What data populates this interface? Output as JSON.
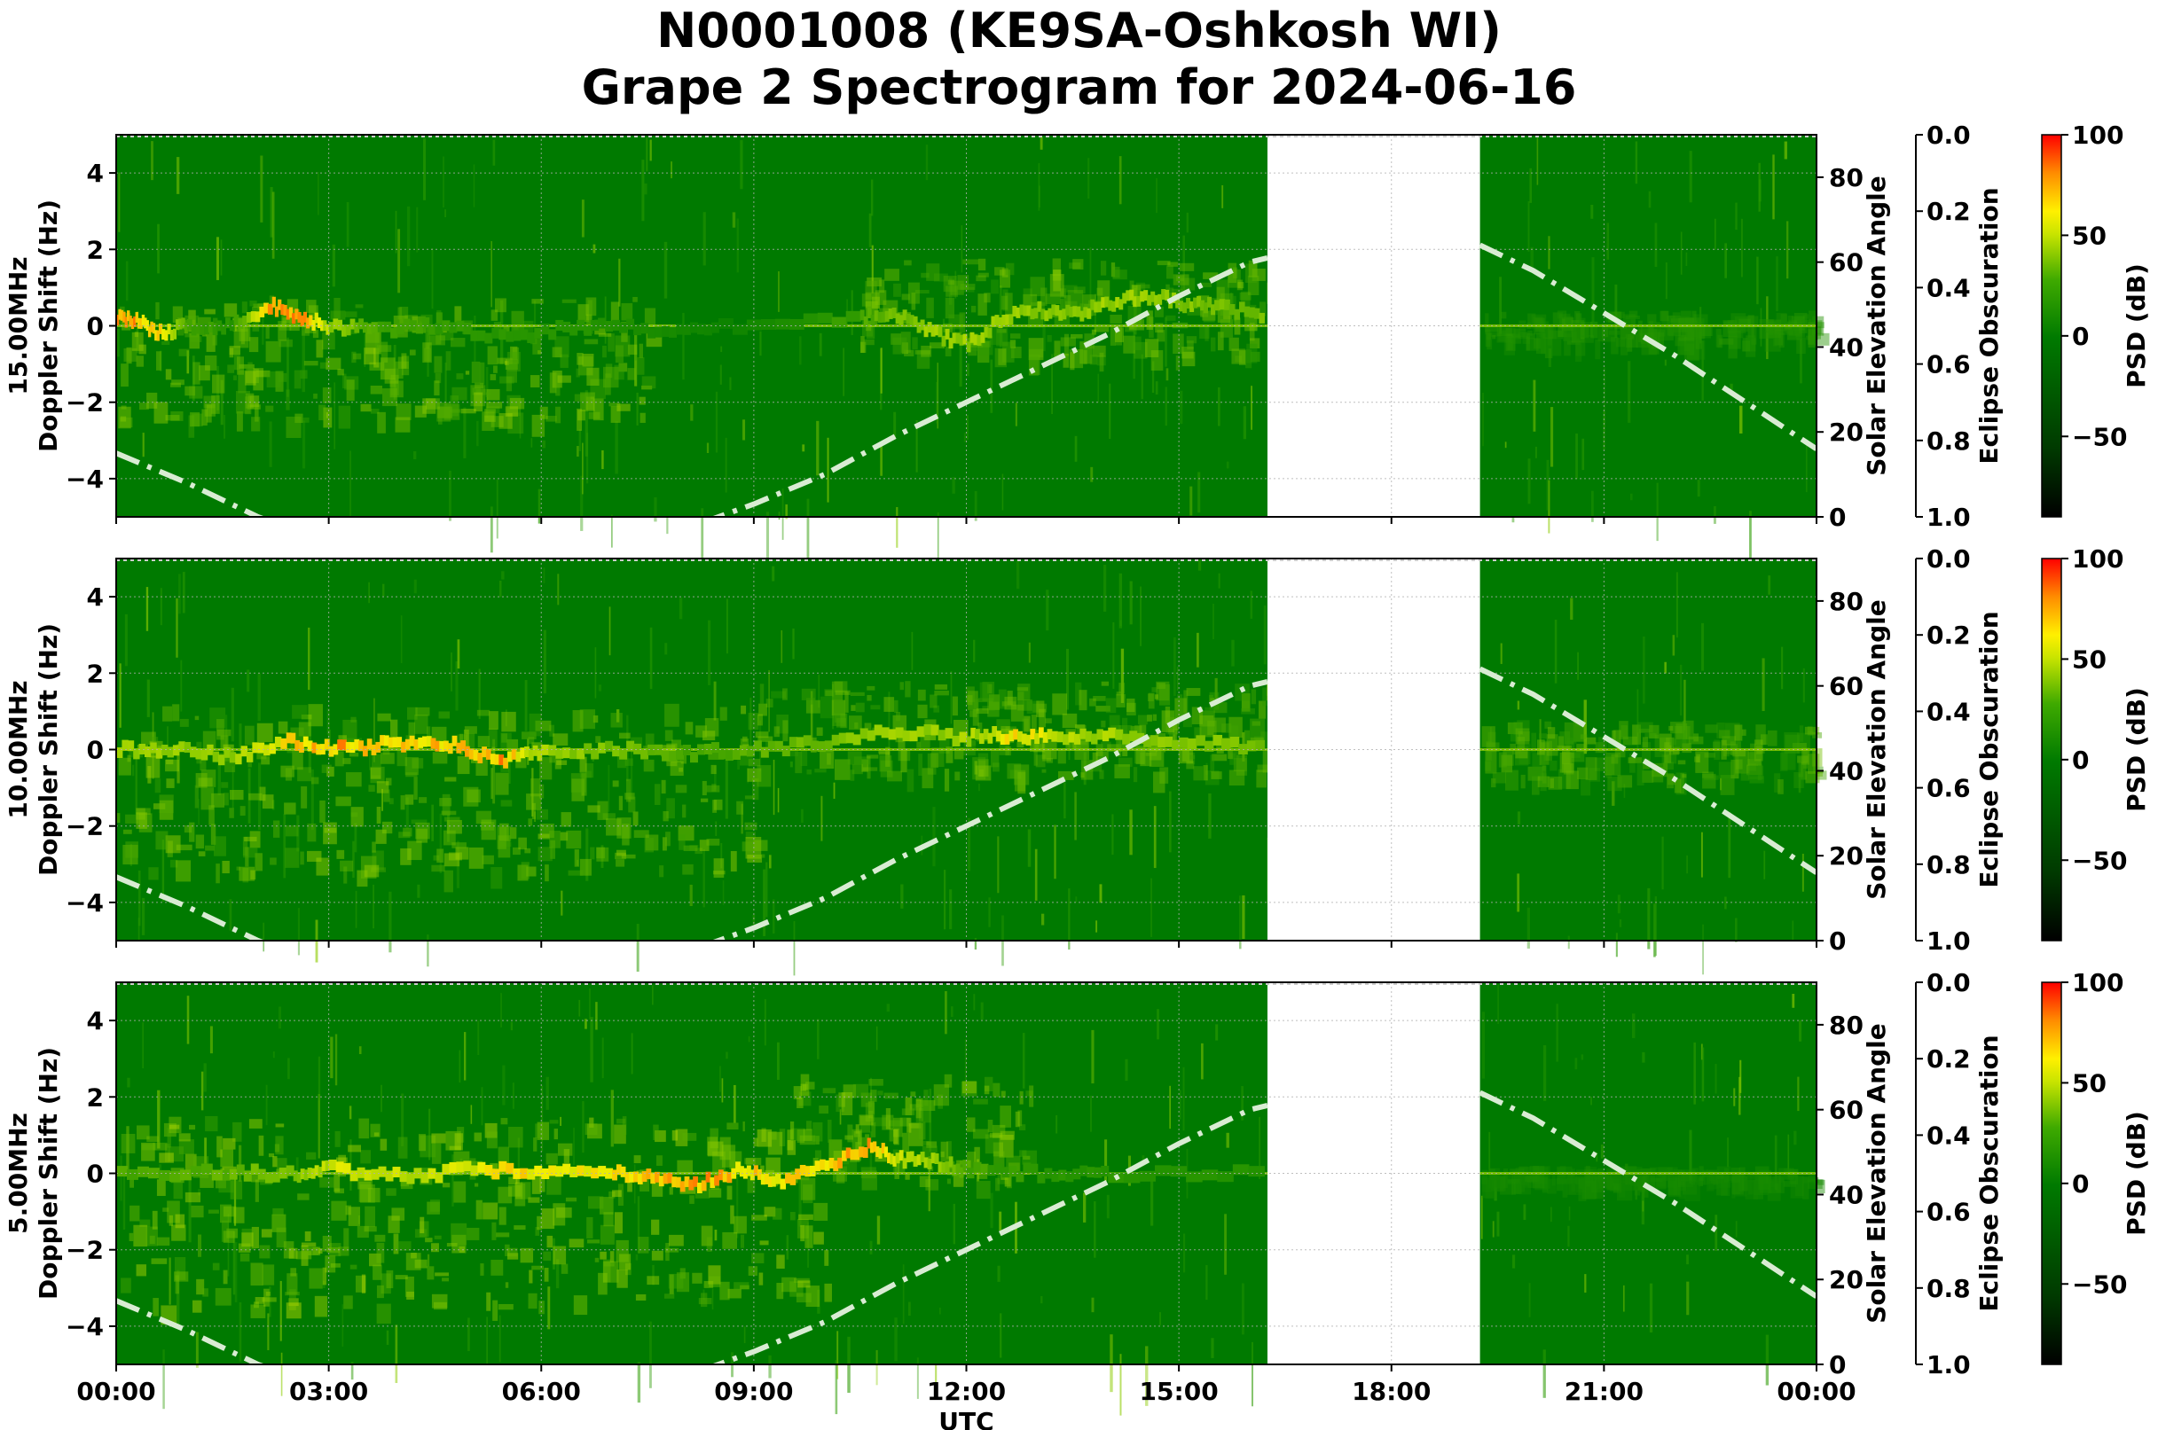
{
  "title": {
    "line1": "N0001008 (KE9SA-Oshkosh WI)",
    "line2": "Grape 2 Spectrogram for 2024-06-16"
  },
  "colors": {
    "background_green": "#007a00",
    "noise_low": "#2a9a00",
    "noise_mid": "#8ccc00",
    "signal_yellow": "#f2f000",
    "signal_red": "#ff2a00",
    "data_gap": "#ffffff",
    "solar_curve": "#d9ecd3",
    "grid": "#b0b0b0"
  },
  "chart_data": [
    {
      "type": "heatmap",
      "panel": "15.00MHz",
      "ylabel": "15.00MHz\nDoppler Shift (Hz)",
      "xlabel": "",
      "ylim": [
        -5,
        5
      ],
      "xlim_hours": [
        0,
        24
      ],
      "y_ticks": [
        "4",
        "2",
        "0",
        "−2",
        "−4"
      ],
      "y_tick_values": [
        4,
        2,
        0,
        -2,
        -4
      ],
      "x_ticks": [
        "00:00",
        "03:00",
        "06:00",
        "09:00",
        "12:00",
        "15:00",
        "18:00",
        "21:00",
        "00:00"
      ],
      "x_tick_values": [
        0,
        3,
        6,
        9,
        12,
        15,
        18,
        21,
        24
      ],
      "data_gap_hours": [
        16.25,
        19.25
      ],
      "carrier_doppler_hz": 0,
      "signal_trace": {
        "hours": [
          0,
          0.3,
          0.6,
          1.0,
          1.6,
          2.2,
          2.6,
          3.0,
          3.6,
          4.5,
          5.5,
          6.5,
          7.5,
          8.5,
          10.5,
          11.0,
          11.5,
          12.0,
          12.5,
          13.0,
          13.5,
          14.0,
          14.5,
          15.0,
          15.5,
          16.2
        ],
        "doppler": [
          0.2,
          0.1,
          -0.2,
          0.0,
          0.0,
          0.5,
          0.2,
          0.0,
          -0.1,
          0.0,
          -0.3,
          0.0,
          -0.1,
          0.0,
          0.2,
          0.3,
          -0.2,
          -0.5,
          0.2,
          0.4,
          0.3,
          0.6,
          0.8,
          0.6,
          0.5,
          0.3
        ],
        "intensity": [
          0.9,
          0.9,
          0.8,
          0.4,
          0.3,
          0.95,
          0.95,
          0.6,
          0.4,
          0.35,
          0.3,
          0.3,
          0.2,
          0.1,
          0.4,
          0.5,
          0.6,
          0.6,
          0.6,
          0.55,
          0.55,
          0.6,
          0.6,
          0.55,
          0.5,
          0.5
        ]
      },
      "spread_regions": [
        {
          "start_h": 0.0,
          "end_h": 7.5,
          "center_hz": -0.8,
          "spread_hz": 1.6,
          "strength": 0.55
        },
        {
          "start_h": 10.5,
          "end_h": 16.25,
          "center_hz": 0.5,
          "spread_hz": 1.3,
          "strength": 0.5
        },
        {
          "start_h": 19.25,
          "end_h": 24.0,
          "center_hz": 0.0,
          "spread_hz": 0.4,
          "strength": 0.3
        }
      ],
      "right_axis": {
        "label": "Solar Elevation Angle",
        "ylim": [
          0,
          90
        ],
        "ticks": [
          "0",
          "20",
          "40",
          "60",
          "80"
        ],
        "tick_values": [
          0,
          20,
          40,
          60,
          80
        ]
      },
      "eclipse_axis": {
        "label": "Eclipse Obscuration",
        "ylim": [
          1.0,
          0.0
        ],
        "ticks": [
          "0.0",
          "0.2",
          "0.4",
          "0.6",
          "0.8",
          "1.0"
        ],
        "tick_values": [
          0.0,
          0.2,
          0.4,
          0.6,
          0.8,
          1.0
        ]
      },
      "colorbar": {
        "label": "PSD (dB)",
        "range": [
          -90,
          100
        ],
        "ticks": [
          "100",
          "50",
          "0",
          "−50"
        ],
        "tick_values": [
          100,
          50,
          0,
          -50
        ]
      },
      "solar_elevation": {
        "hours": [
          0,
          1,
          2,
          3,
          4,
          5,
          6,
          7,
          8,
          9,
          10,
          11,
          12,
          13,
          14,
          15,
          16,
          16.25,
          19.25,
          20,
          21,
          22,
          23,
          24
        ],
        "degrees": [
          15,
          8,
          0,
          -6,
          -10,
          -12,
          -11,
          -8,
          -3,
          3,
          10,
          19,
          27,
          35,
          43,
          52,
          60,
          61,
          64,
          58,
          48,
          38,
          27,
          16
        ]
      }
    },
    {
      "type": "heatmap",
      "panel": "10.00MHz",
      "ylabel": "10.00MHz\nDoppler Shift (Hz)",
      "xlabel": "",
      "ylim": [
        -5,
        5
      ],
      "xlim_hours": [
        0,
        24
      ],
      "y_ticks": [
        "4",
        "2",
        "0",
        "−2",
        "−4"
      ],
      "y_tick_values": [
        4,
        2,
        0,
        -2,
        -4
      ],
      "x_ticks": [
        "00:00",
        "03:00",
        "06:00",
        "09:00",
        "12:00",
        "15:00",
        "18:00",
        "21:00",
        "00:00"
      ],
      "x_tick_values": [
        0,
        3,
        6,
        9,
        12,
        15,
        18,
        21,
        24
      ],
      "data_gap_hours": [
        16.25,
        19.25
      ],
      "carrier_doppler_hz": 0,
      "signal_trace": {
        "hours": [
          0,
          0.8,
          1.6,
          2.4,
          3.0,
          3.6,
          4.2,
          4.8,
          5.4,
          6.0,
          7.0,
          8.0,
          9.0,
          10.0,
          11.0,
          12.0,
          12.6,
          13.2,
          14.0,
          15.0,
          16.2
        ],
        "doppler": [
          0.0,
          0.0,
          -0.2,
          0.2,
          0.0,
          0.1,
          0.2,
          0.1,
          -0.3,
          -0.1,
          0.0,
          -0.1,
          0.0,
          0.2,
          0.5,
          0.3,
          0.4,
          0.3,
          0.4,
          0.2,
          0.1
        ],
        "intensity": [
          0.6,
          0.6,
          0.6,
          0.8,
          0.9,
          0.85,
          0.8,
          0.9,
          0.9,
          0.6,
          0.5,
          0.4,
          0.45,
          0.5,
          0.6,
          0.6,
          0.8,
          0.7,
          0.6,
          0.55,
          0.5
        ]
      },
      "spread_regions": [
        {
          "start_h": 0.0,
          "end_h": 9.0,
          "center_hz": -1.0,
          "spread_hz": 2.2,
          "strength": 0.55
        },
        {
          "start_h": 9.0,
          "end_h": 16.25,
          "center_hz": 0.6,
          "spread_hz": 1.2,
          "strength": 0.5
        },
        {
          "start_h": 19.25,
          "end_h": 24.0,
          "center_hz": 0.0,
          "spread_hz": 0.8,
          "strength": 0.45
        }
      ],
      "right_axis": {
        "label": "Solar Elevation Angle",
        "ylim": [
          0,
          90
        ],
        "ticks": [
          "0",
          "20",
          "40",
          "60",
          "80"
        ],
        "tick_values": [
          0,
          20,
          40,
          60,
          80
        ]
      },
      "eclipse_axis": {
        "label": "Eclipse Obscuration",
        "ylim": [
          1.0,
          0.0
        ],
        "ticks": [
          "0.0",
          "0.2",
          "0.4",
          "0.6",
          "0.8",
          "1.0"
        ],
        "tick_values": [
          0.0,
          0.2,
          0.4,
          0.6,
          0.8,
          1.0
        ]
      },
      "colorbar": {
        "label": "PSD (dB)",
        "range": [
          -90,
          100
        ],
        "ticks": [
          "100",
          "50",
          "0",
          "−50"
        ],
        "tick_values": [
          100,
          50,
          0,
          -50
        ]
      },
      "solar_elevation": {
        "hours": [
          0,
          1,
          2,
          3,
          4,
          5,
          6,
          7,
          8,
          9,
          10,
          11,
          12,
          13,
          14,
          15,
          16,
          16.25,
          19.25,
          20,
          21,
          22,
          23,
          24
        ],
        "degrees": [
          15,
          8,
          0,
          -6,
          -10,
          -12,
          -11,
          -8,
          -3,
          3,
          10,
          19,
          27,
          35,
          43,
          52,
          60,
          61,
          64,
          58,
          48,
          38,
          27,
          16
        ]
      }
    },
    {
      "type": "heatmap",
      "panel": "5.00MHz",
      "ylabel": "5.00MHz\nDoppler Shift (Hz)",
      "xlabel": "UTC",
      "ylim": [
        -5,
        5
      ],
      "xlim_hours": [
        0,
        24
      ],
      "y_ticks": [
        "4",
        "2",
        "0",
        "−2",
        "−4"
      ],
      "y_tick_values": [
        4,
        2,
        0,
        -2,
        -4
      ],
      "x_ticks": [
        "00:00",
        "03:00",
        "06:00",
        "09:00",
        "12:00",
        "15:00",
        "18:00",
        "21:00",
        "00:00"
      ],
      "x_tick_values": [
        0,
        3,
        6,
        9,
        12,
        15,
        18,
        21,
        24
      ],
      "data_gap_hours": [
        16.25,
        19.25
      ],
      "carrier_doppler_hz": 0,
      "signal_trace": {
        "hours": [
          0,
          1.5,
          2.5,
          3.0,
          4.0,
          5.0,
          6.0,
          7.0,
          7.6,
          8.2,
          8.8,
          9.3,
          10.0,
          10.6,
          11.0,
          11.5,
          12.0,
          13.0,
          14.0,
          16.2
        ],
        "doppler": [
          0.0,
          0.0,
          0.0,
          0.1,
          -0.1,
          0.1,
          0.0,
          0.0,
          -0.1,
          -0.3,
          0.1,
          -0.2,
          0.2,
          0.7,
          0.4,
          0.3,
          0.1,
          0.0,
          0.0,
          0.0
        ],
        "intensity": [
          0.4,
          0.45,
          0.55,
          0.7,
          0.7,
          0.75,
          0.8,
          0.8,
          0.85,
          0.9,
          0.85,
          0.8,
          0.85,
          0.9,
          0.7,
          0.6,
          0.4,
          0.3,
          0.3,
          0.3
        ]
      },
      "spread_regions": [
        {
          "start_h": 0.0,
          "end_h": 10.0,
          "center_hz": -1.0,
          "spread_hz": 2.5,
          "strength": 0.6
        },
        {
          "start_h": 9.5,
          "end_h": 13.0,
          "center_hz": 1.2,
          "spread_hz": 1.4,
          "strength": 0.55
        },
        {
          "start_h": 19.25,
          "end_h": 24.0,
          "center_hz": 0.0,
          "spread_hz": 0.2,
          "strength": 0.2
        }
      ],
      "right_axis": {
        "label": "Solar Elevation Angle",
        "ylim": [
          0,
          90
        ],
        "ticks": [
          "0",
          "20",
          "40",
          "60",
          "80"
        ],
        "tick_values": [
          0,
          20,
          40,
          60,
          80
        ]
      },
      "eclipse_axis": {
        "label": "Eclipse Obscuration",
        "ylim": [
          1.0,
          0.0
        ],
        "ticks": [
          "0.0",
          "0.2",
          "0.4",
          "0.6",
          "0.8",
          "1.0"
        ],
        "tick_values": [
          0.0,
          0.2,
          0.4,
          0.6,
          0.8,
          1.0
        ]
      },
      "colorbar": {
        "label": "PSD (dB)",
        "range": [
          -90,
          100
        ],
        "ticks": [
          "100",
          "50",
          "0",
          "−50"
        ],
        "tick_values": [
          100,
          50,
          0,
          -50
        ]
      },
      "solar_elevation": {
        "hours": [
          0,
          1,
          2,
          3,
          4,
          5,
          6,
          7,
          8,
          9,
          10,
          11,
          12,
          13,
          14,
          15,
          16,
          16.25,
          19.25,
          20,
          21,
          22,
          23,
          24
        ],
        "degrees": [
          15,
          8,
          0,
          -6,
          -10,
          -12,
          -11,
          -8,
          -3,
          3,
          10,
          19,
          27,
          35,
          43,
          52,
          60,
          61,
          64,
          58,
          48,
          38,
          27,
          16
        ]
      }
    }
  ]
}
